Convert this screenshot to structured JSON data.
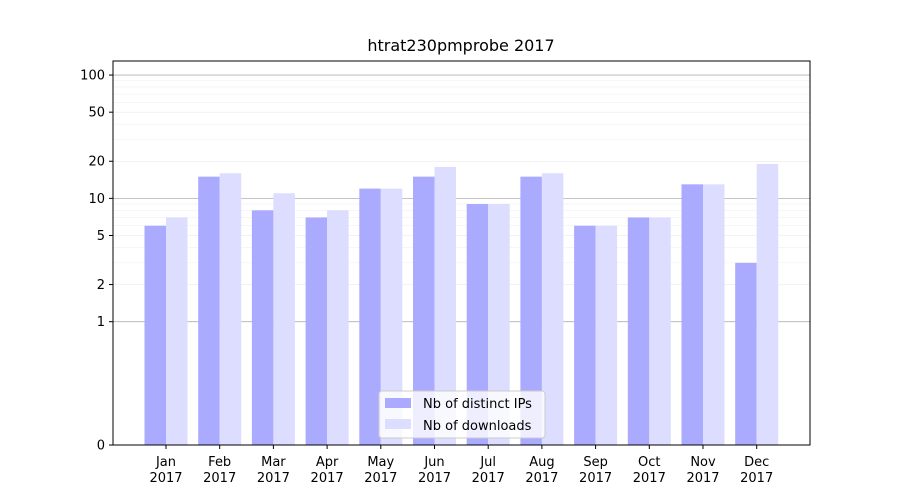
{
  "chart_data": {
    "type": "bar",
    "title": "htrat230pmprobe 2017",
    "xlabel": "",
    "ylabel": "",
    "scale": "symlog",
    "ylim": [
      0,
      130
    ],
    "yticks": [
      0,
      1,
      2,
      5,
      10,
      20,
      50,
      100
    ],
    "grid": true,
    "legend_position": "bottom-center",
    "categories": [
      [
        "Jan",
        "2017"
      ],
      [
        "Feb",
        "2017"
      ],
      [
        "Mar",
        "2017"
      ],
      [
        "Apr",
        "2017"
      ],
      [
        "May",
        "2017"
      ],
      [
        "Jun",
        "2017"
      ],
      [
        "Jul",
        "2017"
      ],
      [
        "Aug",
        "2017"
      ],
      [
        "Sep",
        "2017"
      ],
      [
        "Oct",
        "2017"
      ],
      [
        "Nov",
        "2017"
      ],
      [
        "Dec",
        "2017"
      ]
    ],
    "series": [
      {
        "name": "Nb of distinct IPs",
        "color": "#aaaaff",
        "values": [
          6,
          15,
          8,
          7,
          12,
          15,
          9,
          15,
          6,
          7,
          13,
          3
        ]
      },
      {
        "name": "Nb of downloads",
        "color": "#ddddff",
        "values": [
          7,
          16,
          11,
          8,
          12,
          18,
          9,
          16,
          6,
          7,
          13,
          19
        ]
      }
    ]
  }
}
